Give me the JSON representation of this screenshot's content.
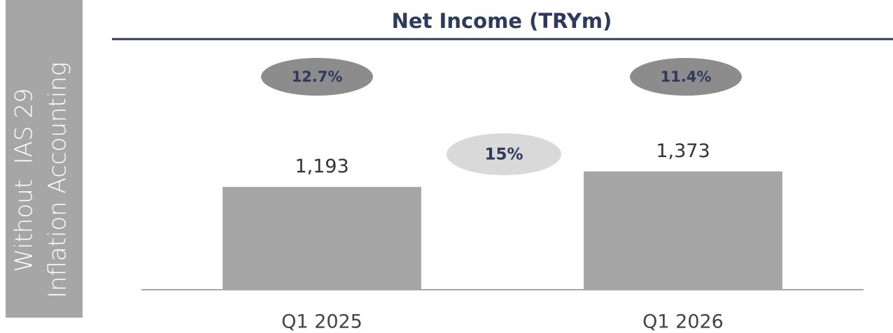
{
  "chart_data": {
    "type": "bar",
    "title": "Net Income (TRYm)",
    "side_label": [
      "Without  IAS 29",
      "Inflation Accounting"
    ],
    "categories": [
      "Q1 2025",
      "Q1 2026"
    ],
    "values": [
      1193,
      1373
    ],
    "value_labels": [
      "1,193",
      "1,373"
    ],
    "color": "#a6a6a6",
    "ylim": [
      0,
      2600
    ],
    "margin_values": [
      12.7,
      11.4
    ],
    "margin_labels": [
      "12.7%",
      "11.4%"
    ],
    "growth": 15,
    "growth_label": "15%"
  }
}
